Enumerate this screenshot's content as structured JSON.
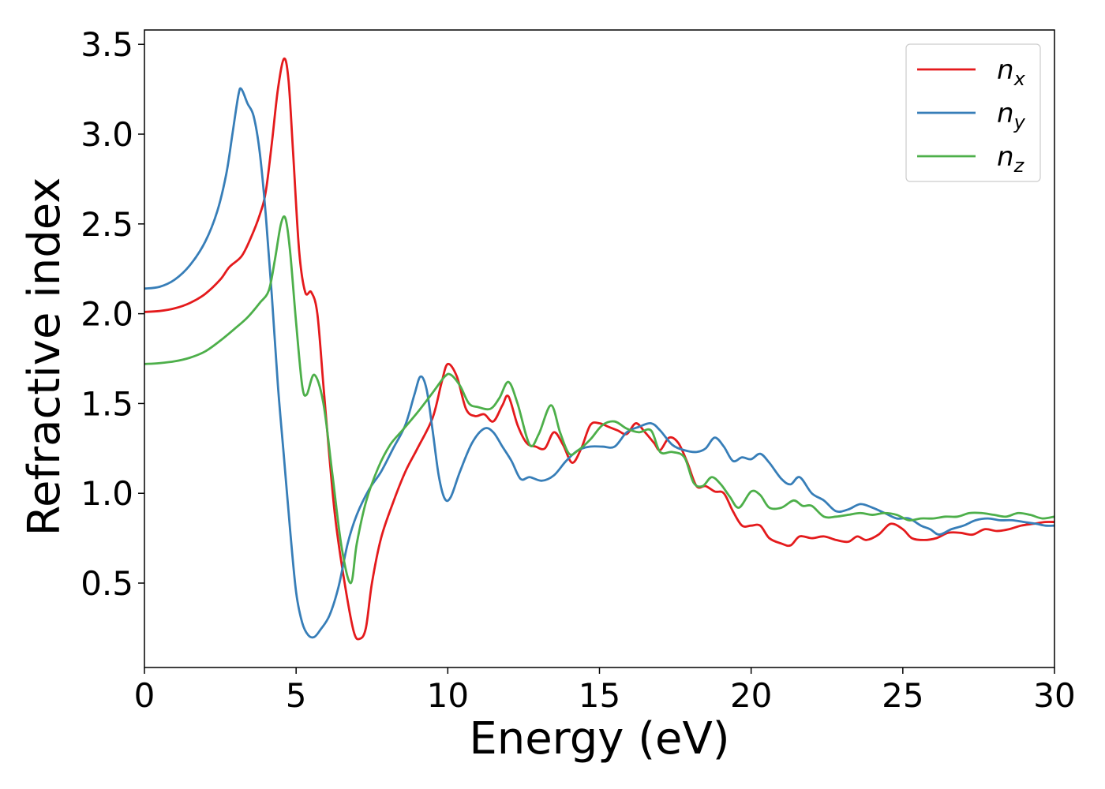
{
  "chart_data": {
    "type": "line",
    "title": "",
    "xlabel": "Energy (eV)",
    "ylabel": "Refractive index",
    "xlim": [
      0,
      30
    ],
    "ylim": [
      0.03,
      3.58
    ],
    "xticks": [
      0,
      5,
      10,
      15,
      20,
      25,
      30
    ],
    "yticks": [
      0.5,
      1.0,
      1.5,
      2.0,
      2.5,
      3.0,
      3.5
    ],
    "xtick_labels": [
      "0",
      "5",
      "10",
      "15",
      "20",
      "25",
      "30"
    ],
    "ytick_labels": [
      "0.5",
      "1.0",
      "1.5",
      "2.0",
      "2.5",
      "3.0",
      "3.5"
    ],
    "grid": false,
    "legend_position": "top-right",
    "series": [
      {
        "name_main": "n",
        "name_sub": "x",
        "color": "#e41a1c",
        "points": [
          [
            0,
            2.01
          ],
          [
            0.5,
            2.015
          ],
          [
            1.0,
            2.03
          ],
          [
            1.5,
            2.06
          ],
          [
            2.0,
            2.11
          ],
          [
            2.5,
            2.19
          ],
          [
            2.8,
            2.26
          ],
          [
            3.2,
            2.32
          ],
          [
            3.5,
            2.42
          ],
          [
            3.8,
            2.55
          ],
          [
            4.0,
            2.68
          ],
          [
            4.2,
            2.95
          ],
          [
            4.4,
            3.25
          ],
          [
            4.6,
            3.42
          ],
          [
            4.75,
            3.3
          ],
          [
            4.9,
            2.9
          ],
          [
            5.1,
            2.35
          ],
          [
            5.3,
            2.12
          ],
          [
            5.5,
            2.12
          ],
          [
            5.7,
            2.0
          ],
          [
            5.9,
            1.6
          ],
          [
            6.1,
            1.2
          ],
          [
            6.3,
            0.85
          ],
          [
            6.6,
            0.5
          ],
          [
            6.9,
            0.23
          ],
          [
            7.1,
            0.19
          ],
          [
            7.3,
            0.25
          ],
          [
            7.5,
            0.5
          ],
          [
            7.8,
            0.75
          ],
          [
            8.2,
            0.95
          ],
          [
            8.6,
            1.12
          ],
          [
            9.0,
            1.25
          ],
          [
            9.5,
            1.42
          ],
          [
            9.8,
            1.62
          ],
          [
            10.0,
            1.72
          ],
          [
            10.3,
            1.65
          ],
          [
            10.6,
            1.47
          ],
          [
            10.9,
            1.43
          ],
          [
            11.2,
            1.44
          ],
          [
            11.5,
            1.4
          ],
          [
            11.8,
            1.49
          ],
          [
            12.0,
            1.54
          ],
          [
            12.3,
            1.38
          ],
          [
            12.6,
            1.28
          ],
          [
            12.9,
            1.26
          ],
          [
            13.2,
            1.25
          ],
          [
            13.5,
            1.34
          ],
          [
            13.8,
            1.27
          ],
          [
            14.1,
            1.17
          ],
          [
            14.4,
            1.25
          ],
          [
            14.7,
            1.38
          ],
          [
            15.0,
            1.39
          ],
          [
            15.3,
            1.37
          ],
          [
            15.6,
            1.35
          ],
          [
            15.9,
            1.33
          ],
          [
            16.2,
            1.39
          ],
          [
            16.5,
            1.34
          ],
          [
            16.8,
            1.28
          ],
          [
            17.0,
            1.24
          ],
          [
            17.3,
            1.31
          ],
          [
            17.6,
            1.28
          ],
          [
            17.9,
            1.17
          ],
          [
            18.2,
            1.04
          ],
          [
            18.5,
            1.04
          ],
          [
            18.8,
            1.01
          ],
          [
            19.1,
            1.0
          ],
          [
            19.4,
            0.9
          ],
          [
            19.7,
            0.82
          ],
          [
            20.0,
            0.82
          ],
          [
            20.3,
            0.82
          ],
          [
            20.6,
            0.75
          ],
          [
            21.0,
            0.72
          ],
          [
            21.3,
            0.71
          ],
          [
            21.6,
            0.76
          ],
          [
            22.0,
            0.75
          ],
          [
            22.4,
            0.76
          ],
          [
            22.8,
            0.74
          ],
          [
            23.2,
            0.73
          ],
          [
            23.5,
            0.76
          ],
          [
            23.8,
            0.74
          ],
          [
            24.2,
            0.77
          ],
          [
            24.6,
            0.83
          ],
          [
            25.0,
            0.8
          ],
          [
            25.3,
            0.75
          ],
          [
            25.7,
            0.74
          ],
          [
            26.1,
            0.75
          ],
          [
            26.5,
            0.78
          ],
          [
            26.9,
            0.78
          ],
          [
            27.3,
            0.77
          ],
          [
            27.7,
            0.8
          ],
          [
            28.1,
            0.79
          ],
          [
            28.5,
            0.8
          ],
          [
            28.9,
            0.82
          ],
          [
            29.3,
            0.83
          ],
          [
            29.7,
            0.84
          ],
          [
            30.0,
            0.84
          ]
        ]
      },
      {
        "name_main": "n",
        "name_sub": "y",
        "color": "#377eb8",
        "points": [
          [
            0,
            2.14
          ],
          [
            0.5,
            2.15
          ],
          [
            1.0,
            2.19
          ],
          [
            1.5,
            2.27
          ],
          [
            2.0,
            2.4
          ],
          [
            2.4,
            2.57
          ],
          [
            2.7,
            2.78
          ],
          [
            2.9,
            3.0
          ],
          [
            3.1,
            3.22
          ],
          [
            3.2,
            3.25
          ],
          [
            3.4,
            3.17
          ],
          [
            3.6,
            3.1
          ],
          [
            3.8,
            2.9
          ],
          [
            4.0,
            2.55
          ],
          [
            4.2,
            2.1
          ],
          [
            4.4,
            1.6
          ],
          [
            4.6,
            1.2
          ],
          [
            4.8,
            0.8
          ],
          [
            5.0,
            0.45
          ],
          [
            5.2,
            0.28
          ],
          [
            5.4,
            0.21
          ],
          [
            5.6,
            0.2
          ],
          [
            5.8,
            0.24
          ],
          [
            6.1,
            0.32
          ],
          [
            6.4,
            0.48
          ],
          [
            6.7,
            0.72
          ],
          [
            7.0,
            0.88
          ],
          [
            7.4,
            1.02
          ],
          [
            7.8,
            1.12
          ],
          [
            8.2,
            1.25
          ],
          [
            8.6,
            1.38
          ],
          [
            8.9,
            1.55
          ],
          [
            9.1,
            1.65
          ],
          [
            9.3,
            1.58
          ],
          [
            9.5,
            1.35
          ],
          [
            9.7,
            1.1
          ],
          [
            9.9,
            0.97
          ],
          [
            10.1,
            0.98
          ],
          [
            10.4,
            1.12
          ],
          [
            10.8,
            1.28
          ],
          [
            11.2,
            1.36
          ],
          [
            11.5,
            1.34
          ],
          [
            11.8,
            1.26
          ],
          [
            12.1,
            1.18
          ],
          [
            12.4,
            1.08
          ],
          [
            12.7,
            1.09
          ],
          [
            13.1,
            1.07
          ],
          [
            13.5,
            1.1
          ],
          [
            13.9,
            1.18
          ],
          [
            14.3,
            1.24
          ],
          [
            14.7,
            1.26
          ],
          [
            15.1,
            1.26
          ],
          [
            15.5,
            1.26
          ],
          [
            15.9,
            1.34
          ],
          [
            16.3,
            1.37
          ],
          [
            16.7,
            1.39
          ],
          [
            17.0,
            1.35
          ],
          [
            17.4,
            1.27
          ],
          [
            17.8,
            1.24
          ],
          [
            18.2,
            1.23
          ],
          [
            18.5,
            1.25
          ],
          [
            18.8,
            1.31
          ],
          [
            19.1,
            1.26
          ],
          [
            19.4,
            1.18
          ],
          [
            19.7,
            1.2
          ],
          [
            20.0,
            1.19
          ],
          [
            20.3,
            1.22
          ],
          [
            20.6,
            1.17
          ],
          [
            21.0,
            1.08
          ],
          [
            21.3,
            1.05
          ],
          [
            21.6,
            1.09
          ],
          [
            22.0,
            1.0
          ],
          [
            22.4,
            0.96
          ],
          [
            22.8,
            0.9
          ],
          [
            23.2,
            0.91
          ],
          [
            23.6,
            0.94
          ],
          [
            24.0,
            0.92
          ],
          [
            24.4,
            0.89
          ],
          [
            24.8,
            0.86
          ],
          [
            25.2,
            0.86
          ],
          [
            25.6,
            0.82
          ],
          [
            25.9,
            0.8
          ],
          [
            26.2,
            0.77
          ],
          [
            26.6,
            0.8
          ],
          [
            27.0,
            0.82
          ],
          [
            27.4,
            0.85
          ],
          [
            27.8,
            0.86
          ],
          [
            28.2,
            0.85
          ],
          [
            28.6,
            0.85
          ],
          [
            29.0,
            0.84
          ],
          [
            29.4,
            0.83
          ],
          [
            29.7,
            0.82
          ],
          [
            30.0,
            0.82
          ]
        ]
      },
      {
        "name_main": "n",
        "name_sub": "z",
        "color": "#4daf4a",
        "points": [
          [
            0,
            1.72
          ],
          [
            0.5,
            1.725
          ],
          [
            1.0,
            1.735
          ],
          [
            1.5,
            1.755
          ],
          [
            2.0,
            1.79
          ],
          [
            2.5,
            1.85
          ],
          [
            3.0,
            1.92
          ],
          [
            3.4,
            1.98
          ],
          [
            3.8,
            2.06
          ],
          [
            4.1,
            2.13
          ],
          [
            4.3,
            2.3
          ],
          [
            4.5,
            2.5
          ],
          [
            4.65,
            2.53
          ],
          [
            4.8,
            2.35
          ],
          [
            5.0,
            1.95
          ],
          [
            5.2,
            1.6
          ],
          [
            5.35,
            1.55
          ],
          [
            5.6,
            1.66
          ],
          [
            5.9,
            1.5
          ],
          [
            6.2,
            1.1
          ],
          [
            6.5,
            0.7
          ],
          [
            6.8,
            0.5
          ],
          [
            7.0,
            0.72
          ],
          [
            7.3,
            0.95
          ],
          [
            7.7,
            1.14
          ],
          [
            8.1,
            1.27
          ],
          [
            8.5,
            1.35
          ],
          [
            9.0,
            1.45
          ],
          [
            9.5,
            1.56
          ],
          [
            9.9,
            1.65
          ],
          [
            10.1,
            1.66
          ],
          [
            10.4,
            1.6
          ],
          [
            10.7,
            1.5
          ],
          [
            11.0,
            1.48
          ],
          [
            11.4,
            1.47
          ],
          [
            11.7,
            1.53
          ],
          [
            12.0,
            1.62
          ],
          [
            12.3,
            1.5
          ],
          [
            12.7,
            1.27
          ],
          [
            13.0,
            1.33
          ],
          [
            13.4,
            1.49
          ],
          [
            13.7,
            1.34
          ],
          [
            14.0,
            1.22
          ],
          [
            14.3,
            1.24
          ],
          [
            14.7,
            1.3
          ],
          [
            15.1,
            1.38
          ],
          [
            15.5,
            1.4
          ],
          [
            15.9,
            1.36
          ],
          [
            16.3,
            1.34
          ],
          [
            16.7,
            1.35
          ],
          [
            17.0,
            1.23
          ],
          [
            17.4,
            1.23
          ],
          [
            17.8,
            1.2
          ],
          [
            18.1,
            1.06
          ],
          [
            18.4,
            1.04
          ],
          [
            18.7,
            1.09
          ],
          [
            19.0,
            1.05
          ],
          [
            19.3,
            0.98
          ],
          [
            19.6,
            0.92
          ],
          [
            20.0,
            1.01
          ],
          [
            20.3,
            0.99
          ],
          [
            20.6,
            0.92
          ],
          [
            21.0,
            0.92
          ],
          [
            21.4,
            0.96
          ],
          [
            21.7,
            0.93
          ],
          [
            22.0,
            0.93
          ],
          [
            22.4,
            0.87
          ],
          [
            22.8,
            0.87
          ],
          [
            23.2,
            0.88
          ],
          [
            23.6,
            0.89
          ],
          [
            24.0,
            0.88
          ],
          [
            24.4,
            0.89
          ],
          [
            24.8,
            0.88
          ],
          [
            25.2,
            0.85
          ],
          [
            25.6,
            0.86
          ],
          [
            26.0,
            0.86
          ],
          [
            26.4,
            0.87
          ],
          [
            26.8,
            0.87
          ],
          [
            27.2,
            0.89
          ],
          [
            27.6,
            0.89
          ],
          [
            28.0,
            0.88
          ],
          [
            28.4,
            0.87
          ],
          [
            28.8,
            0.89
          ],
          [
            29.2,
            0.88
          ],
          [
            29.6,
            0.86
          ],
          [
            30.0,
            0.87
          ]
        ]
      }
    ]
  }
}
